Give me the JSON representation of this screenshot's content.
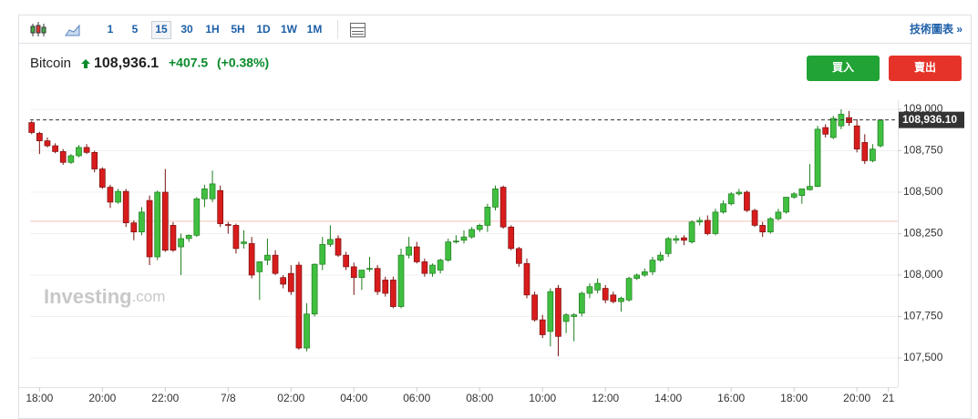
{
  "toolbar": {
    "intervals": [
      "1",
      "5",
      "15",
      "30",
      "1H",
      "5H",
      "1D",
      "1W",
      "1M"
    ],
    "selected": 2,
    "link": "技術圖表 »"
  },
  "header": {
    "name": "Bitcoin",
    "price": "108,936.1",
    "change": "+407.5",
    "change_pct": "(+0.38%)"
  },
  "buttons": {
    "buy": "買入",
    "sell": "賣出"
  },
  "watermark": {
    "brand": "Investing",
    "suffix": ".com"
  },
  "chart_data": {
    "type": "candlestick",
    "up_color": "#40bf40",
    "up_border": "#1e7d1e",
    "down_color": "#d81c1c",
    "down_border": "#7a1010",
    "last_price_label": "108,936.10",
    "ref_line": 108325,
    "xlim": [
      -6.3,
      21.3
    ],
    "ylim": [
      107324,
      109055
    ],
    "xticks": [
      {
        "value": -6,
        "label": "18:00"
      },
      {
        "value": -4,
        "label": "20:00"
      },
      {
        "value": -2,
        "label": "22:00"
      },
      {
        "value": 0,
        "label": "7/8"
      },
      {
        "value": 2,
        "label": "02:00"
      },
      {
        "value": 4,
        "label": "04:00"
      },
      {
        "value": 6,
        "label": "06:00"
      },
      {
        "value": 8,
        "label": "08:00"
      },
      {
        "value": 10,
        "label": "10:00"
      },
      {
        "value": 12,
        "label": "12:00"
      },
      {
        "value": 14,
        "label": "14:00"
      },
      {
        "value": 16,
        "label": "16:00"
      },
      {
        "value": 18,
        "label": "18:00"
      },
      {
        "value": 20,
        "label": "20:00"
      },
      {
        "value": 21,
        "label": "21"
      }
    ],
    "yticks": [
      {
        "value": 107500,
        "label": "107,500"
      },
      {
        "value": 107750,
        "label": "107,750"
      },
      {
        "value": 108000,
        "label": "108,000"
      },
      {
        "value": 108250,
        "label": "108,250"
      },
      {
        "value": 108500,
        "label": "108,500"
      },
      {
        "value": 108750,
        "label": "108,750"
      },
      {
        "value": 109000,
        "label": "109,000"
      }
    ],
    "x": [
      -6.25,
      -6,
      -5.75,
      -5.5,
      -5.25,
      -5,
      -4.75,
      -4.5,
      -4.25,
      -4,
      -3.75,
      -3.5,
      -3.25,
      -3,
      -2.75,
      -2.5,
      -2.25,
      -2,
      -1.75,
      -1.5,
      -1.25,
      -1,
      -0.75,
      -0.5,
      -0.25,
      0,
      0.25,
      0.5,
      0.75,
      1,
      1.25,
      1.5,
      1.75,
      2,
      2.25,
      2.5,
      2.75,
      3,
      3.25,
      3.5,
      3.75,
      4,
      4.25,
      4.5,
      4.75,
      5,
      5.25,
      5.5,
      5.75,
      6,
      6.25,
      6.5,
      6.75,
      7,
      7.25,
      7.5,
      7.75,
      8,
      8.25,
      8.5,
      8.75,
      9,
      9.25,
      9.5,
      9.75,
      10,
      10.25,
      10.5,
      10.75,
      11,
      11.25,
      11.5,
      11.75,
      12,
      12.25,
      12.5,
      12.75,
      13,
      13.25,
      13.5,
      13.75,
      14,
      14.25,
      14.5,
      14.75,
      15,
      15.25,
      15.5,
      15.75,
      16,
      16.25,
      16.5,
      16.75,
      17,
      17.25,
      17.5,
      17.75,
      18,
      18.25,
      18.5,
      18.75,
      19,
      19.25,
      19.5,
      19.75,
      20,
      20.25,
      20.5,
      20.75
    ],
    "candles": [
      [
        108920,
        108930,
        108850,
        108860
      ],
      [
        108855,
        108865,
        108730,
        108810
      ],
      [
        108810,
        108830,
        108770,
        108780
      ],
      [
        108780,
        108795,
        108735,
        108745
      ],
      [
        108745,
        108760,
        108665,
        108680
      ],
      [
        108680,
        108730,
        108670,
        108720
      ],
      [
        108720,
        108785,
        108710,
        108770
      ],
      [
        108770,
        108790,
        108730,
        108740
      ],
      [
        108740,
        108750,
        108620,
        108640
      ],
      [
        108640,
        108650,
        108520,
        108530
      ],
      [
        108530,
        108545,
        108405,
        108440
      ],
      [
        108440,
        108520,
        108430,
        108505
      ],
      [
        108505,
        108520,
        108290,
        108315
      ],
      [
        108315,
        108330,
        108210,
        108260
      ],
      [
        108260,
        108410,
        108240,
        108380
      ],
      [
        108450,
        108480,
        108060,
        108110
      ],
      [
        108110,
        108510,
        108090,
        108500
      ],
      [
        108500,
        108640,
        108140,
        108150
      ],
      [
        108300,
        108320,
        108140,
        108150
      ],
      [
        108170,
        108250,
        108000,
        108220
      ],
      [
        108220,
        108245,
        108200,
        108240
      ],
      [
        108240,
        108470,
        108230,
        108460
      ],
      [
        108460,
        108545,
        108410,
        108520
      ],
      [
        108460,
        108630,
        108440,
        108550
      ],
      [
        108510,
        108540,
        108290,
        108310
      ],
      [
        108305,
        108320,
        108250,
        108300
      ],
      [
        108300,
        108310,
        108130,
        108160
      ],
      [
        108190,
        108270,
        108160,
        108200
      ],
      [
        108190,
        108230,
        107980,
        108000
      ],
      [
        108020,
        108080,
        107850,
        108080
      ],
      [
        108090,
        108220,
        108060,
        108120
      ],
      [
        108120,
        108150,
        108000,
        108010
      ],
      [
        107985,
        108000,
        107920,
        107945
      ],
      [
        108010,
        108060,
        107880,
        107900
      ],
      [
        108060,
        108080,
        107550,
        107560
      ],
      [
        107560,
        107830,
        107540,
        107765
      ],
      [
        107765,
        108070,
        107750,
        108065
      ],
      [
        108065,
        108230,
        108030,
        108185
      ],
      [
        108185,
        108300,
        108170,
        108215
      ],
      [
        108220,
        108240,
        108110,
        108120
      ],
      [
        108120,
        108140,
        108030,
        108050
      ],
      [
        108050,
        108075,
        107880,
        107985
      ],
      [
        107985,
        108030,
        107910,
        108030
      ],
      [
        108035,
        108110,
        108020,
        108040
      ],
      [
        108040,
        108060,
        107880,
        107900
      ],
      [
        107970,
        107990,
        107870,
        107890
      ],
      [
        107970,
        107990,
        107800,
        107810
      ],
      [
        107810,
        108160,
        107800,
        108120
      ],
      [
        108120,
        108230,
        108100,
        108170
      ],
      [
        108170,
        108200,
        108070,
        108080
      ],
      [
        108080,
        108100,
        107990,
        108010
      ],
      [
        108010,
        108070,
        107990,
        108060
      ],
      [
        108030,
        108100,
        108010,
        108090
      ],
      [
        108090,
        108220,
        108080,
        108200
      ],
      [
        108200,
        108240,
        108190,
        108205
      ],
      [
        108210,
        108270,
        108190,
        108230
      ],
      [
        108230,
        108290,
        108220,
        108275
      ],
      [
        108275,
        108310,
        108260,
        108300
      ],
      [
        108300,
        108430,
        108260,
        108410
      ],
      [
        108410,
        108540,
        108390,
        108520
      ],
      [
        108530,
        108540,
        108280,
        108290
      ],
      [
        108290,
        108300,
        108150,
        108160
      ],
      [
        108160,
        108170,
        108050,
        108070
      ],
      [
        108070,
        108100,
        107860,
        107880
      ],
      [
        107880,
        107900,
        107720,
        107730
      ],
      [
        107730,
        107760,
        107620,
        107640
      ],
      [
        107660,
        107920,
        107570,
        107900
      ],
      [
        107920,
        107940,
        107510,
        107630
      ],
      [
        107720,
        107770,
        107650,
        107760
      ],
      [
        107750,
        107770,
        107600,
        107760
      ],
      [
        107770,
        107900,
        107750,
        107890
      ],
      [
        107890,
        107950,
        107860,
        107930
      ],
      [
        107910,
        107980,
        107890,
        107950
      ],
      [
        107920,
        107940,
        107830,
        107850
      ],
      [
        107880,
        107900,
        107830,
        107840
      ],
      [
        107840,
        107870,
        107780,
        107860
      ],
      [
        107850,
        107990,
        107840,
        107980
      ],
      [
        107980,
        108010,
        107970,
        108000
      ],
      [
        108000,
        108040,
        107990,
        108020
      ],
      [
        108020,
        108110,
        108000,
        108090
      ],
      [
        108090,
        108140,
        108080,
        108120
      ],
      [
        108130,
        108230,
        108110,
        108220
      ],
      [
        108210,
        108240,
        108190,
        108220
      ],
      [
        108225,
        108240,
        108180,
        108210
      ],
      [
        108200,
        108330,
        108190,
        108320
      ],
      [
        108320,
        108350,
        108300,
        108330
      ],
      [
        108330,
        108360,
        108240,
        108250
      ],
      [
        108250,
        108400,
        108240,
        108380
      ],
      [
        108380,
        108450,
        108370,
        108430
      ],
      [
        108430,
        108500,
        108420,
        108490
      ],
      [
        108490,
        108520,
        108480,
        108500
      ],
      [
        108500,
        108510,
        108380,
        108390
      ],
      [
        108390,
        108400,
        108290,
        108300
      ],
      [
        108300,
        108320,
        108230,
        108260
      ],
      [
        108260,
        108350,
        108250,
        108340
      ],
      [
        108340,
        108400,
        108330,
        108380
      ],
      [
        108380,
        108470,
        108370,
        108470
      ],
      [
        108470,
        108500,
        108460,
        108490
      ],
      [
        108480,
        108520,
        108430,
        108520
      ],
      [
        108515,
        108670,
        108510,
        108535
      ],
      [
        108535,
        108900,
        108530,
        108880
      ],
      [
        108890,
        108910,
        108830,
        108850
      ],
      [
        108830,
        108960,
        108820,
        108945
      ],
      [
        108900,
        109000,
        108880,
        108970
      ],
      [
        108950,
        108990,
        108900,
        108920
      ],
      [
        108900,
        108940,
        108740,
        108760
      ],
      [
        108800,
        108850,
        108670,
        108690
      ],
      [
        108690,
        108790,
        108680,
        108760
      ],
      [
        108780,
        108940,
        108770,
        108936.1
      ]
    ]
  }
}
